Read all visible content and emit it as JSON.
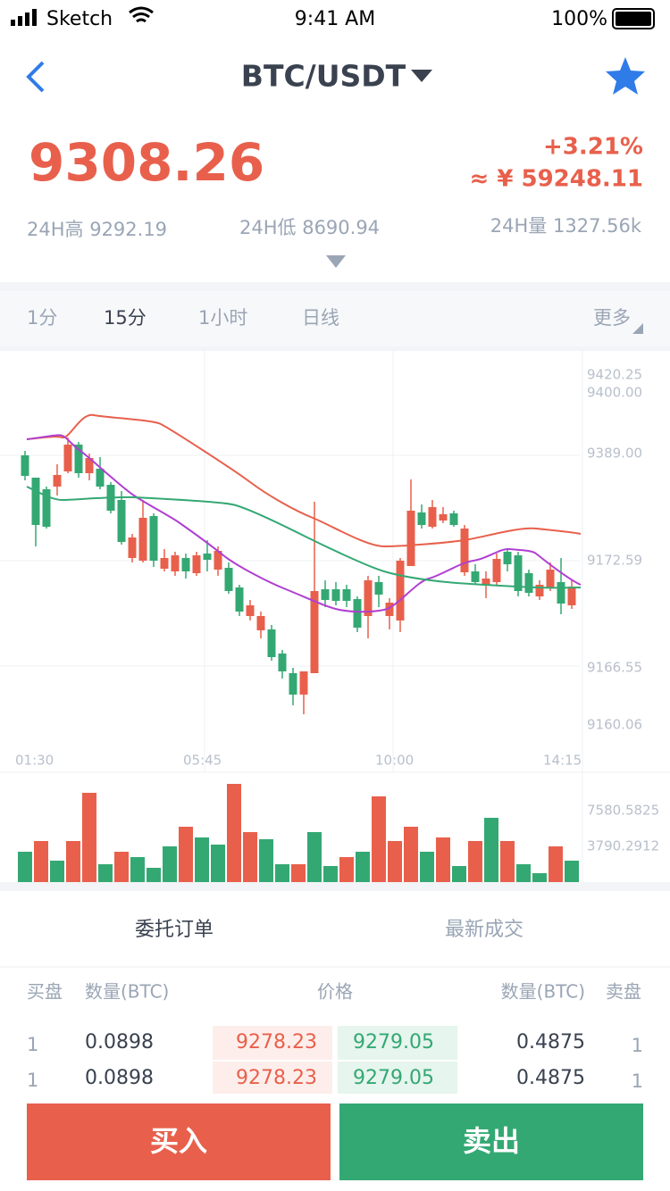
{
  "status_bar": {
    "carrier": "Sketch",
    "time": "9:41 AM",
    "battery": "100%"
  },
  "header": {
    "title": "BTC/USDT"
  },
  "price": {
    "last": "9308.26",
    "change": "+3.21%",
    "cny": "≈ ¥ 59248.11"
  },
  "stats": [
    {
      "label": "24H高",
      "value": "9292.19"
    },
    {
      "label": "24H低",
      "value": "8690.94"
    },
    {
      "label": "24H量",
      "value": "1327.56k"
    }
  ],
  "tabs": [
    "1分",
    "15分",
    "1小时",
    "日线"
  ],
  "more": "更多",
  "chart": {
    "price_labels": [
      "9420.25",
      "9400.00",
      "9389.00",
      "9172.59",
      "9166.55",
      "9160.06"
    ],
    "time_labels": [
      "01:30",
      "05:45",
      "10:00",
      "14:15"
    ],
    "volume_labels": [
      "7580.5825",
      "3790.2912"
    ]
  },
  "order_tabs": [
    "委托订单",
    "最新成交"
  ],
  "table": {
    "headers": [
      "买盘",
      "数量(BTC)",
      "价格",
      "数量(BTC)",
      "卖盘"
    ],
    "rows": [
      [
        "1",
        "0.0898",
        "9278.23",
        "9279.05",
        "0.4875",
        "1"
      ],
      [
        "1",
        "0.0898",
        "9278.23",
        "9279.05",
        "0.4875",
        "1"
      ]
    ]
  },
  "buttons": [
    "买入",
    "卖出"
  ]
}
